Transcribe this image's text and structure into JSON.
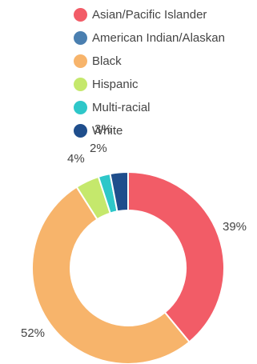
{
  "chart_data": {
    "type": "pie",
    "donut": true,
    "legend_position": "top",
    "categories": [
      "Asian/Pacific Islander",
      "American Indian/Alaskan",
      "Black",
      "Hispanic",
      "Multi-racial",
      "White"
    ],
    "values": [
      39,
      0,
      52,
      4,
      2,
      3
    ],
    "labels": [
      "39%",
      "",
      "52%",
      "4%",
      "2%",
      "3%"
    ],
    "colors": [
      "#f25c67",
      "#4a7fb0",
      "#f7b46b",
      "#c5e86c",
      "#2ec7c9",
      "#1f4e8c"
    ]
  }
}
